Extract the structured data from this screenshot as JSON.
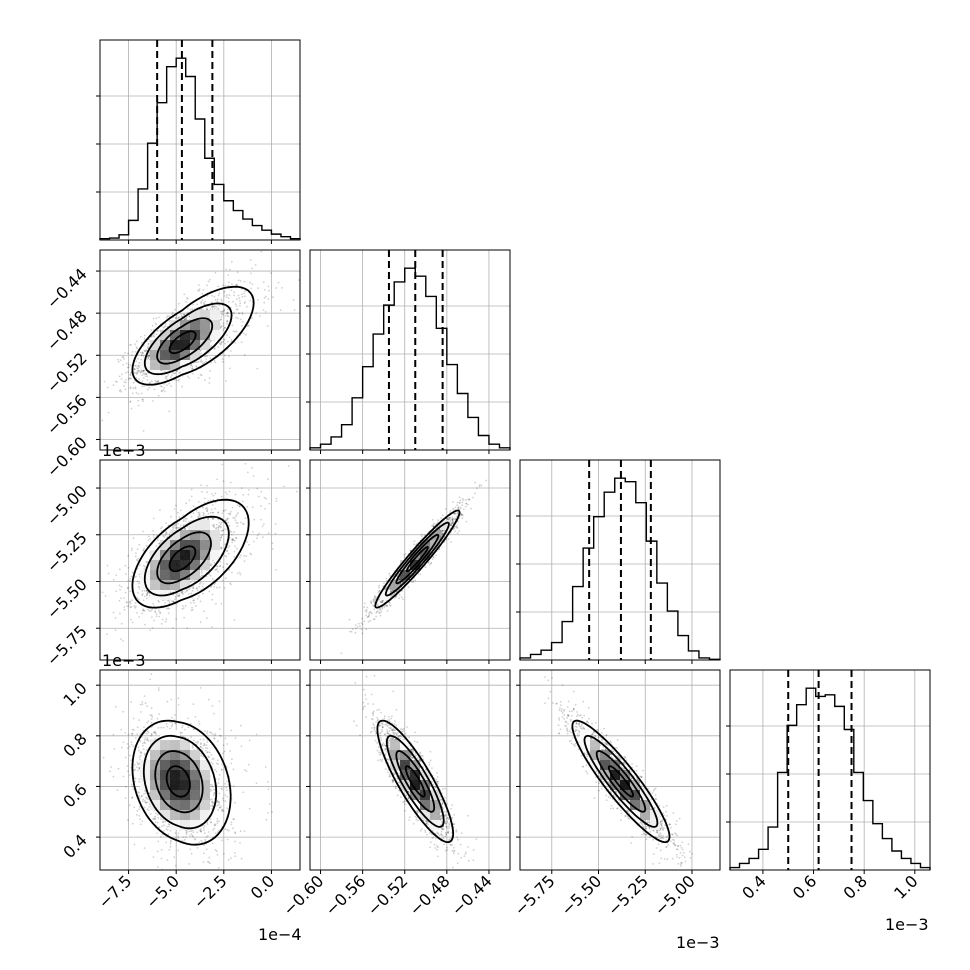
{
  "chart_data": {
    "type": "corner",
    "grid": true,
    "parameters": [
      {
        "range": [
          -9.0,
          1.5
        ],
        "scale_offset": "1e−4",
        "ticks": [
          -7.5,
          -5.0,
          -2.5,
          0.0
        ],
        "tick_labels": [
          "−7.5",
          "−5.0",
          "−2.5",
          "0.0"
        ],
        "quantiles": [
          -6.0,
          -4.7,
          -3.1
        ]
      },
      {
        "range": [
          -0.61,
          -0.42
        ],
        "scale_offset": "",
        "ticks": [
          -0.6,
          -0.56,
          -0.52,
          -0.48,
          -0.44
        ],
        "tick_labels": [
          "−0.60",
          "−0.56",
          "−0.52",
          "−0.48",
          "−0.44"
        ],
        "quantiles": [
          -0.535,
          -0.51,
          -0.484
        ]
      },
      {
        "range": [
          -5.92,
          -4.85
        ],
        "scale_offset": "1e−3",
        "ticks": [
          -5.75,
          -5.5,
          -5.25,
          -5.0
        ],
        "tick_labels": [
          "−5.75",
          "−5.50",
          "−5.25",
          "−5.00"
        ],
        "quantiles": [
          -5.55,
          -5.38,
          -5.22
        ]
      },
      {
        "range": [
          0.27,
          1.06
        ],
        "scale_offset": "1e−3",
        "ticks": [
          0.4,
          0.6,
          0.8,
          1.0
        ],
        "tick_labels": [
          "0.4",
          "0.6",
          "0.8",
          "1.0"
        ],
        "quantiles": [
          0.5,
          0.62,
          0.75
        ]
      }
    ],
    "histograms": [
      [
        2,
        3,
        8,
        30,
        78,
        148,
        210,
        265,
        278,
        250,
        185,
        125,
        85,
        60,
        45,
        32,
        22,
        15,
        9,
        5,
        2
      ],
      [
        3,
        8,
        18,
        35,
        72,
        115,
        160,
        200,
        232,
        251,
        240,
        212,
        168,
        118,
        78,
        45,
        20,
        8,
        3
      ],
      [
        3,
        8,
        14,
        25,
        55,
        105,
        160,
        205,
        240,
        260,
        255,
        225,
        170,
        110,
        70,
        35,
        13,
        3,
        1
      ],
      [
        3,
        8,
        14,
        25,
        52,
        118,
        175,
        200,
        220,
        210,
        212,
        198,
        170,
        118,
        84,
        56,
        38,
        23,
        14,
        8,
        3
      ]
    ],
    "pairs": [
      {
        "x": 0,
        "y": 1,
        "mean": [
          -4.7,
          -0.508
        ],
        "sd": [
          1.3,
          0.02
        ],
        "rho": 0.65,
        "skew": 0.9
      },
      {
        "x": 0,
        "y": 2,
        "mean": [
          -4.7,
          -5.38
        ],
        "sd": [
          1.3,
          0.13
        ],
        "rho": 0.55,
        "skew": 0.7
      },
      {
        "x": 1,
        "y": 2,
        "mean": [
          -0.508,
          -5.38
        ],
        "sd": [
          0.02,
          0.13
        ],
        "rho": 0.96,
        "skew": 0.0
      },
      {
        "x": 0,
        "y": 3,
        "mean": [
          -4.9,
          0.62
        ],
        "sd": [
          1.2,
          0.12
        ],
        "rho": -0.22,
        "skew": 0.3
      },
      {
        "x": 1,
        "y": 3,
        "mean": [
          -0.51,
          0.62
        ],
        "sd": [
          0.018,
          0.12
        ],
        "rho": -0.86,
        "skew": 0.0
      },
      {
        "x": 2,
        "y": 3,
        "mean": [
          -5.38,
          0.62
        ],
        "sd": [
          0.13,
          0.12
        ],
        "rho": -0.91,
        "skew": 0.0
      }
    ],
    "contour_levels": [
      0.5,
      1.0,
      1.5,
      2.0
    ]
  }
}
